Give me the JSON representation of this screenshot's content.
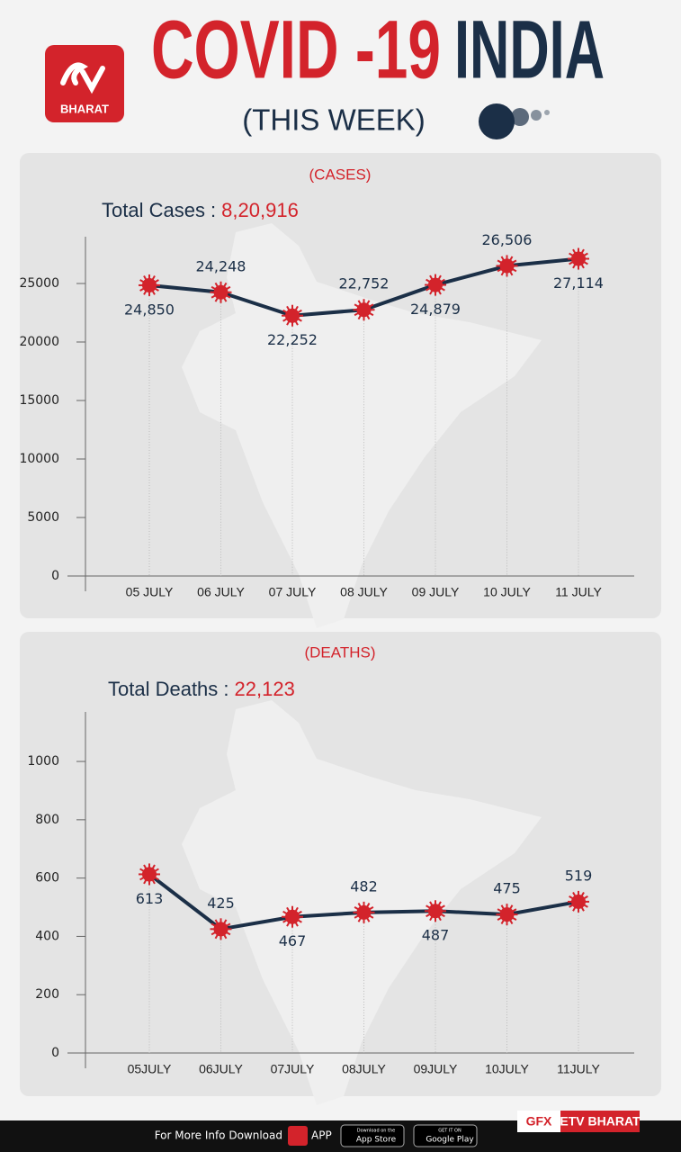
{
  "header": {
    "logo": "BHARAT",
    "title_red": "COVID -19",
    "title_blue": "INDIA",
    "subtitle": "(THIS WEEK)"
  },
  "chart_data": [
    {
      "type": "line",
      "title": "(CASES)",
      "total_label": "Total Cases :",
      "total_value": "8,20,916",
      "categories": [
        "05 JULY",
        "06 JULY",
        "07 JULY",
        "08 JULY",
        "09 JULY",
        "10 JULY",
        "11 JULY"
      ],
      "values": [
        24850,
        24248,
        22252,
        22752,
        24879,
        26506,
        27114
      ],
      "value_labels": [
        "24,850",
        "24,248",
        "22,252",
        "22,752",
        "24,879",
        "26,506",
        "27,114"
      ],
      "color": "#1b2f47",
      "marker_color": "#d3232b",
      "ylim": [
        0,
        29000
      ],
      "yticks": [
        0,
        5000,
        10000,
        15000,
        20000,
        25000
      ]
    },
    {
      "type": "line",
      "title": "(DEATHS)",
      "total_label": "Total Deaths :",
      "total_value": "22,123",
      "categories": [
        "05JULY",
        "06JULY",
        "07JULY",
        "08JULY",
        "09JULY",
        "10JULY",
        "11JULY"
      ],
      "values": [
        613,
        425,
        467,
        482,
        487,
        475,
        519
      ],
      "color": "#1b2f47",
      "marker_color": "#d3232b",
      "ylim": [
        0,
        1170
      ],
      "yticks": [
        0,
        200,
        400,
        600,
        800,
        1000
      ]
    }
  ],
  "footer": {
    "info": "For More Info Download",
    "app": "APP",
    "app_store_small": "Download on the",
    "app_store": "App Store",
    "google_small": "GET IT ON",
    "google": "Google Play",
    "gfx": "GFX",
    "brand": "ETV BHARAT"
  }
}
